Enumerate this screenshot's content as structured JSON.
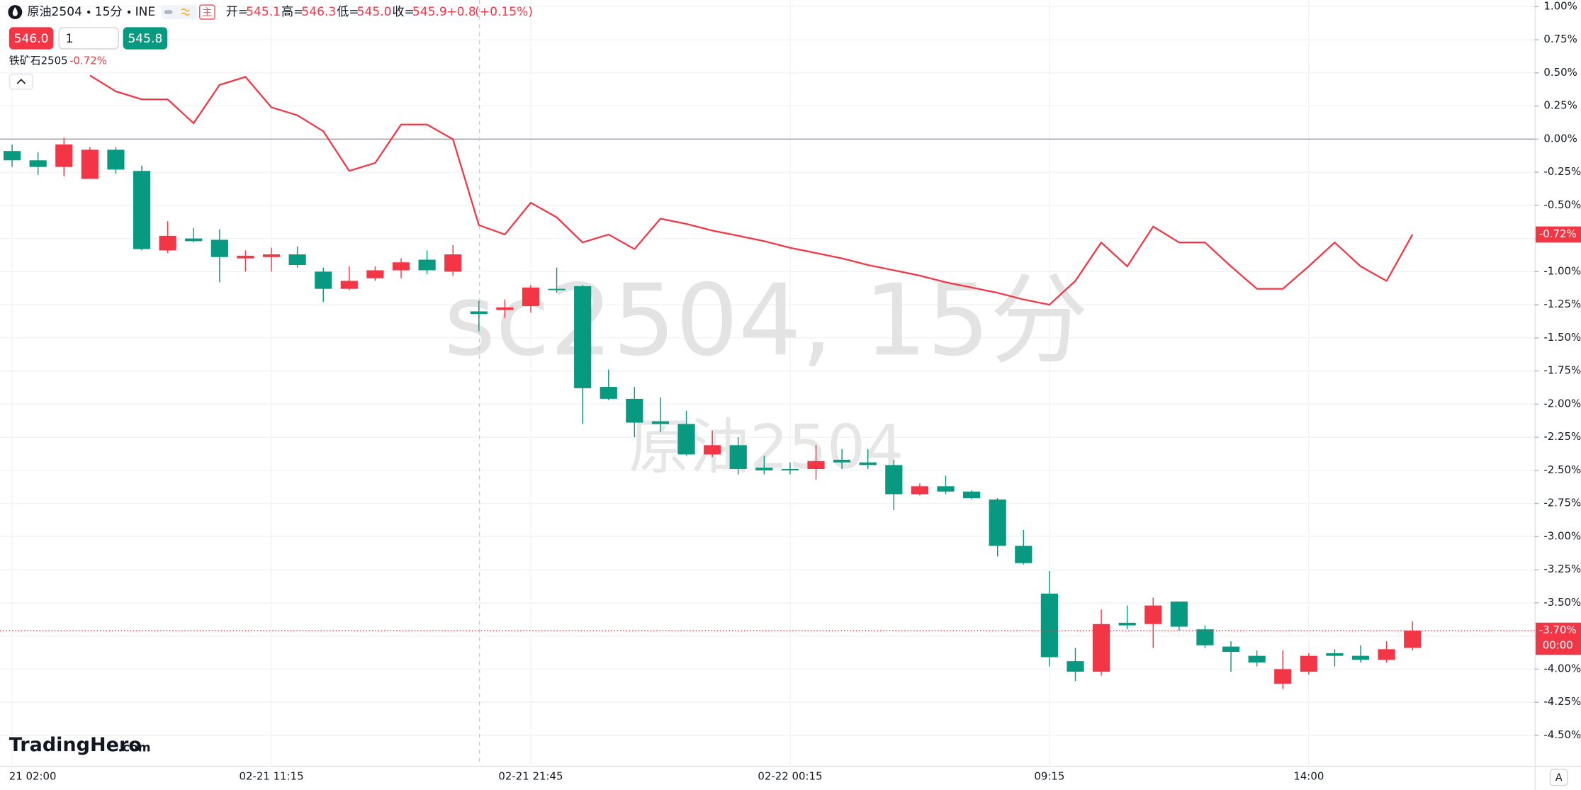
{
  "header": {
    "symbol": "原油2504",
    "interval": "15分",
    "exchange": "INE",
    "ohlc_labels": [
      "开=",
      "高=",
      "低=",
      "收="
    ],
    "ohlc_values": [
      "545.1",
      "546.3",
      "545.0",
      "545.9"
    ],
    "change": "+0.8",
    "change_pct": "(+0.15%)",
    "badge": "主",
    "sell_price": "546.0",
    "quantity": "1",
    "buy_price": "545.8"
  },
  "watermark": [
    "sc2504, 15分",
    "原油2504"
  ],
  "logo": {
    "brand": "TradingHero",
    "suffix": ".com"
  },
  "scale_button": "A",
  "chart_data": {
    "type": "candlestick",
    "categories": [
      "21 02:00",
      null,
      null,
      null,
      null,
      null,
      null,
      null,
      null,
      null,
      "02-21 11:15",
      null,
      null,
      null,
      null,
      null,
      null,
      null,
      null,
      null,
      "02-21 21:45",
      null,
      null,
      null,
      null,
      null,
      null,
      null,
      null,
      null,
      "02-22 00:15",
      null,
      null,
      null,
      null,
      null,
      null,
      null,
      null,
      null,
      "09:15",
      null,
      null,
      null,
      null,
      null,
      null,
      null,
      null,
      null,
      "14:00",
      null,
      null,
      null,
      null
    ],
    "ylim": [
      -4.73,
      1.05
    ],
    "yticks": [
      {
        "value": 1.0,
        "label": "1.00%"
      },
      {
        "value": 0.75,
        "label": "0.75%"
      },
      {
        "value": 0.5,
        "label": "0.50%"
      },
      {
        "value": 0.25,
        "label": "0.25%"
      },
      {
        "value": 0,
        "label": "0.00%"
      },
      {
        "value": -0.25,
        "label": "-0.25%"
      },
      {
        "value": -0.5,
        "label": "-0.50%"
      },
      {
        "value": -0.75,
        "label": "-0.75%"
      },
      {
        "value": -1.0,
        "label": "-1.00%"
      },
      {
        "value": -1.25,
        "label": "-1.25%"
      },
      {
        "value": -1.5,
        "label": "-1.50%"
      },
      {
        "value": -1.75,
        "label": "-1.75%"
      },
      {
        "value": -2.0,
        "label": "-2.00%"
      },
      {
        "value": -2.25,
        "label": "-2.25%"
      },
      {
        "value": -2.5,
        "label": "-2.50%"
      },
      {
        "value": -2.75,
        "label": "-2.75%"
      },
      {
        "value": -3.0,
        "label": "-3.00%"
      },
      {
        "value": -3.25,
        "label": "-3.25%"
      },
      {
        "value": -3.5,
        "label": "-3.50%"
      },
      {
        "value": -3.75,
        "label": "-3.75%"
      },
      {
        "value": -4.0,
        "label": "-4.00%"
      },
      {
        "value": -4.25,
        "label": "-4.25%"
      },
      {
        "value": -4.5,
        "label": "-4.50%"
      }
    ],
    "grid": true,
    "series": [
      {
        "name": "原油2504",
        "type": "candlestick",
        "up_color": "#f23645",
        "down_color": "#089981",
        "open": [
          -0.09,
          -0.16,
          -0.21,
          -0.3,
          -0.08,
          -0.24,
          -0.84,
          -0.75,
          -0.76,
          -0.9,
          -0.89,
          -0.87,
          -1.0,
          -1.13,
          -1.05,
          -0.99,
          -0.91,
          -1.0,
          -1.3,
          -1.29,
          -1.26,
          -1.13,
          -1.11,
          -1.87,
          -1.96,
          -2.13,
          -2.15,
          -2.38,
          -2.31,
          -2.48,
          -2.49,
          -2.49,
          -2.42,
          -2.44,
          -2.46,
          -2.68,
          -2.62,
          -2.66,
          -2.72,
          -3.07,
          -3.43,
          -3.94,
          -4.02,
          -3.65,
          -3.66,
          -3.49,
          -3.7,
          -3.83,
          -3.9,
          -4.11,
          -4.02,
          -3.88,
          -3.9,
          -3.93,
          -3.84
        ],
        "high": [
          -0.04,
          -0.1,
          0.01,
          -0.06,
          -0.06,
          -0.2,
          -0.62,
          -0.67,
          -0.68,
          -0.84,
          -0.82,
          -0.81,
          -0.97,
          -0.96,
          -0.96,
          -0.9,
          -0.84,
          -0.8,
          -1.22,
          -1.21,
          -1.1,
          -0.97,
          -1.1,
          -1.74,
          -1.87,
          -1.95,
          -2.05,
          -2.2,
          -2.25,
          -2.39,
          -2.44,
          -2.31,
          -2.34,
          -2.34,
          -2.42,
          -2.6,
          -2.54,
          -2.65,
          -2.71,
          -2.95,
          -3.26,
          -3.84,
          -3.55,
          -3.52,
          -3.46,
          -3.49,
          -3.67,
          -3.79,
          -3.86,
          -3.86,
          -3.88,
          -3.85,
          -3.82,
          -3.79,
          -3.64
        ],
        "low": [
          -0.21,
          -0.27,
          -0.28,
          -0.3,
          -0.26,
          -0.84,
          -0.86,
          -0.78,
          -1.08,
          -1.0,
          -1.0,
          -0.97,
          -1.23,
          -1.14,
          -1.07,
          -1.05,
          -1.02,
          -1.03,
          -1.45,
          -1.35,
          -1.31,
          -1.16,
          -2.15,
          -1.97,
          -2.25,
          -2.21,
          -2.39,
          -2.4,
          -2.53,
          -2.53,
          -2.53,
          -2.57,
          -2.49,
          -2.49,
          -2.8,
          -2.69,
          -2.68,
          -2.72,
          -3.15,
          -3.21,
          -3.98,
          -4.09,
          -4.05,
          -3.7,
          -3.84,
          -3.71,
          -3.84,
          -4.02,
          -3.98,
          -4.15,
          -4.04,
          -3.98,
          -3.95,
          -3.95,
          -3.86
        ],
        "close": [
          -0.16,
          -0.21,
          -0.04,
          -0.08,
          -0.23,
          -0.83,
          -0.73,
          -0.77,
          -0.89,
          -0.88,
          -0.87,
          -0.95,
          -1.13,
          -1.07,
          -0.99,
          -0.93,
          -0.99,
          -0.87,
          -1.32,
          -1.27,
          -1.12,
          -1.14,
          -1.88,
          -1.96,
          -2.14,
          -2.15,
          -2.38,
          -2.31,
          -2.49,
          -2.5,
          -2.5,
          -2.43,
          -2.44,
          -2.46,
          -2.68,
          -2.62,
          -2.66,
          -2.71,
          -3.07,
          -3.2,
          -3.91,
          -4.02,
          -3.66,
          -3.67,
          -3.52,
          -3.68,
          -3.82,
          -3.87,
          -3.95,
          -4.0,
          -3.9,
          -3.9,
          -3.93,
          -3.85,
          -3.71
        ],
        "last_label": "-3.70%",
        "countdown": "00:00"
      },
      {
        "name": "铁矿石2505",
        "type": "line",
        "color": "#f23645",
        "values": [
          null,
          null,
          null,
          0.48,
          0.36,
          0.3,
          0.3,
          0.12,
          0.41,
          0.47,
          0.24,
          0.18,
          0.06,
          -0.24,
          -0.18,
          0.11,
          0.11,
          0.0,
          -0.65,
          -0.72,
          -0.48,
          -0.59,
          -0.78,
          -0.72,
          -0.83,
          -0.6,
          -0.64,
          -0.69,
          -0.73,
          -0.77,
          -0.82,
          -0.86,
          -0.9,
          -0.95,
          -0.99,
          -1.03,
          -1.08,
          -1.12,
          -1.16,
          -1.21,
          -1.25,
          -1.07,
          -0.78,
          -0.96,
          -0.66,
          -0.78,
          -0.78,
          -0.96,
          -1.13,
          -1.13,
          -0.96,
          -0.78,
          -0.96,
          -1.07,
          -0.72
        ],
        "change": "-0.72%"
      }
    ]
  }
}
